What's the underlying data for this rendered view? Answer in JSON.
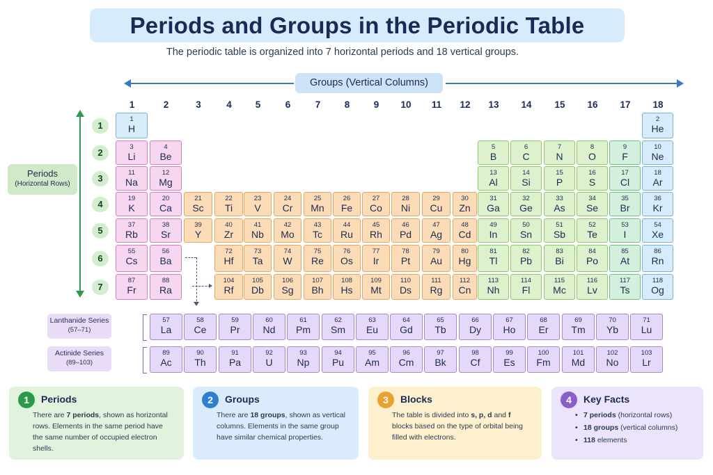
{
  "header": {
    "title": "Periods and Groups in the Periodic Table",
    "subtitle": "The periodic table is organized into 7 horizontal periods and 18 vertical groups."
  },
  "groups_label": "Groups (Vertical Columns)",
  "group_numbers": [
    "1",
    "2",
    "3",
    "4",
    "5",
    "6",
    "7",
    "8",
    "9",
    "10",
    "11",
    "12",
    "13",
    "14",
    "15",
    "16",
    "17",
    "18"
  ],
  "periods_label": {
    "title": "Periods",
    "sub": "(Horizontal Rows)"
  },
  "period_numbers": [
    "1",
    "2",
    "3",
    "4",
    "5",
    "6",
    "7"
  ],
  "elements": [
    {
      "num": "1",
      "sym": "H",
      "col": 1,
      "row": 1,
      "cat": "h"
    },
    {
      "num": "2",
      "sym": "He",
      "col": 18,
      "row": 1,
      "cat": "n"
    },
    {
      "num": "3",
      "sym": "Li",
      "col": 1,
      "row": 2,
      "cat": "s"
    },
    {
      "num": "4",
      "sym": "Be",
      "col": 2,
      "row": 2,
      "cat": "s"
    },
    {
      "num": "5",
      "sym": "B",
      "col": 13,
      "row": 2,
      "cat": "p"
    },
    {
      "num": "6",
      "sym": "C",
      "col": 14,
      "row": 2,
      "cat": "p"
    },
    {
      "num": "7",
      "sym": "N",
      "col": 15,
      "row": 2,
      "cat": "p"
    },
    {
      "num": "8",
      "sym": "O",
      "col": 16,
      "row": 2,
      "cat": "p"
    },
    {
      "num": "9",
      "sym": "F",
      "col": 17,
      "row": 2,
      "cat": "pm"
    },
    {
      "num": "10",
      "sym": "Ne",
      "col": 18,
      "row": 2,
      "cat": "n"
    },
    {
      "num": "11",
      "sym": "Na",
      "col": 1,
      "row": 3,
      "cat": "s"
    },
    {
      "num": "12",
      "sym": "Mg",
      "col": 2,
      "row": 3,
      "cat": "s"
    },
    {
      "num": "13",
      "sym": "Al",
      "col": 13,
      "row": 3,
      "cat": "p"
    },
    {
      "num": "14",
      "sym": "Si",
      "col": 14,
      "row": 3,
      "cat": "p"
    },
    {
      "num": "15",
      "sym": "P",
      "col": 15,
      "row": 3,
      "cat": "p"
    },
    {
      "num": "16",
      "sym": "S",
      "col": 16,
      "row": 3,
      "cat": "p"
    },
    {
      "num": "17",
      "sym": "Cl",
      "col": 17,
      "row": 3,
      "cat": "pm"
    },
    {
      "num": "18",
      "sym": "Ar",
      "col": 18,
      "row": 3,
      "cat": "n"
    },
    {
      "num": "19",
      "sym": "K",
      "col": 1,
      "row": 4,
      "cat": "s"
    },
    {
      "num": "20",
      "sym": "Ca",
      "col": 2,
      "row": 4,
      "cat": "s"
    },
    {
      "num": "21",
      "sym": "Sc",
      "col": 3,
      "row": 4,
      "cat": "d"
    },
    {
      "num": "22",
      "sym": "Ti",
      "col": 4,
      "row": 4,
      "cat": "d"
    },
    {
      "num": "23",
      "sym": "V",
      "col": 5,
      "row": 4,
      "cat": "d"
    },
    {
      "num": "24",
      "sym": "Cr",
      "col": 6,
      "row": 4,
      "cat": "d"
    },
    {
      "num": "25",
      "sym": "Mn",
      "col": 7,
      "row": 4,
      "cat": "d"
    },
    {
      "num": "26",
      "sym": "Fe",
      "col": 8,
      "row": 4,
      "cat": "d"
    },
    {
      "num": "27",
      "sym": "Co",
      "col": 9,
      "row": 4,
      "cat": "d"
    },
    {
      "num": "28",
      "sym": "Ni",
      "col": 10,
      "row": 4,
      "cat": "d"
    },
    {
      "num": "29",
      "sym": "Cu",
      "col": 11,
      "row": 4,
      "cat": "d"
    },
    {
      "num": "30",
      "sym": "Zn",
      "col": 12,
      "row": 4,
      "cat": "d"
    },
    {
      "num": "31",
      "sym": "Ga",
      "col": 13,
      "row": 4,
      "cat": "p"
    },
    {
      "num": "32",
      "sym": "Ge",
      "col": 14,
      "row": 4,
      "cat": "p"
    },
    {
      "num": "33",
      "sym": "As",
      "col": 15,
      "row": 4,
      "cat": "p"
    },
    {
      "num": "34",
      "sym": "Se",
      "col": 16,
      "row": 4,
      "cat": "p"
    },
    {
      "num": "35",
      "sym": "Br",
      "col": 17,
      "row": 4,
      "cat": "pm"
    },
    {
      "num": "36",
      "sym": "Kr",
      "col": 18,
      "row": 4,
      "cat": "n"
    },
    {
      "num": "37",
      "sym": "Rb",
      "col": 1,
      "row": 5,
      "cat": "s"
    },
    {
      "num": "38",
      "sym": "Sr",
      "col": 2,
      "row": 5,
      "cat": "s"
    },
    {
      "num": "39",
      "sym": "Y",
      "col": 3,
      "row": 5,
      "cat": "d"
    },
    {
      "num": "40",
      "sym": "Zr",
      "col": 4,
      "row": 5,
      "cat": "d"
    },
    {
      "num": "41",
      "sym": "Nb",
      "col": 5,
      "row": 5,
      "cat": "d"
    },
    {
      "num": "42",
      "sym": "Mo",
      "col": 6,
      "row": 5,
      "cat": "d"
    },
    {
      "num": "43",
      "sym": "Tc",
      "col": 7,
      "row": 5,
      "cat": "d"
    },
    {
      "num": "44",
      "sym": "Ru",
      "col": 8,
      "row": 5,
      "cat": "d"
    },
    {
      "num": "45",
      "sym": "Rh",
      "col": 9,
      "row": 5,
      "cat": "d"
    },
    {
      "num": "46",
      "sym": "Pd",
      "col": 10,
      "row": 5,
      "cat": "d"
    },
    {
      "num": "47",
      "sym": "Ag",
      "col": 11,
      "row": 5,
      "cat": "d"
    },
    {
      "num": "48",
      "sym": "Cd",
      "col": 12,
      "row": 5,
      "cat": "d"
    },
    {
      "num": "49",
      "sym": "In",
      "col": 13,
      "row": 5,
      "cat": "p"
    },
    {
      "num": "50",
      "sym": "Sn",
      "col": 14,
      "row": 5,
      "cat": "p"
    },
    {
      "num": "51",
      "sym": "Sb",
      "col": 15,
      "row": 5,
      "cat": "p"
    },
    {
      "num": "52",
      "sym": "Te",
      "col": 16,
      "row": 5,
      "cat": "p"
    },
    {
      "num": "53",
      "sym": "I",
      "col": 17,
      "row": 5,
      "cat": "pm"
    },
    {
      "num": "54",
      "sym": "Xe",
      "col": 18,
      "row": 5,
      "cat": "n"
    },
    {
      "num": "55",
      "sym": "Cs",
      "col": 1,
      "row": 6,
      "cat": "s"
    },
    {
      "num": "56",
      "sym": "Ba",
      "col": 2,
      "row": 6,
      "cat": "s"
    },
    {
      "num": "72",
      "sym": "Hf",
      "col": 4,
      "row": 6,
      "cat": "d"
    },
    {
      "num": "73",
      "sym": "Ta",
      "col": 5,
      "row": 6,
      "cat": "d"
    },
    {
      "num": "74",
      "sym": "W",
      "col": 6,
      "row": 6,
      "cat": "d"
    },
    {
      "num": "75",
      "sym": "Re",
      "col": 7,
      "row": 6,
      "cat": "d"
    },
    {
      "num": "76",
      "sym": "Os",
      "col": 8,
      "row": 6,
      "cat": "d"
    },
    {
      "num": "77",
      "sym": "Ir",
      "col": 9,
      "row": 6,
      "cat": "d"
    },
    {
      "num": "78",
      "sym": "Pt",
      "col": 10,
      "row": 6,
      "cat": "d"
    },
    {
      "num": "79",
      "sym": "Au",
      "col": 11,
      "row": 6,
      "cat": "d"
    },
    {
      "num": "80",
      "sym": "Hg",
      "col": 12,
      "row": 6,
      "cat": "d"
    },
    {
      "num": "81",
      "sym": "Tl",
      "col": 13,
      "row": 6,
      "cat": "p"
    },
    {
      "num": "82",
      "sym": "Pb",
      "col": 14,
      "row": 6,
      "cat": "p"
    },
    {
      "num": "83",
      "sym": "Bi",
      "col": 15,
      "row": 6,
      "cat": "p"
    },
    {
      "num": "84",
      "sym": "Po",
      "col": 16,
      "row": 6,
      "cat": "p"
    },
    {
      "num": "85",
      "sym": "At",
      "col": 17,
      "row": 6,
      "cat": "pm"
    },
    {
      "num": "86",
      "sym": "Rn",
      "col": 18,
      "row": 6,
      "cat": "n"
    },
    {
      "num": "87",
      "sym": "Fr",
      "col": 1,
      "row": 7,
      "cat": "s"
    },
    {
      "num": "88",
      "sym": "Ra",
      "col": 2,
      "row": 7,
      "cat": "s"
    },
    {
      "num": "104",
      "sym": "Rf",
      "col": 4,
      "row": 7,
      "cat": "d"
    },
    {
      "num": "105",
      "sym": "Db",
      "col": 5,
      "row": 7,
      "cat": "d"
    },
    {
      "num": "106",
      "sym": "Sg",
      "col": 6,
      "row": 7,
      "cat": "d"
    },
    {
      "num": "107",
      "sym": "Bh",
      "col": 7,
      "row": 7,
      "cat": "d"
    },
    {
      "num": "108",
      "sym": "Hs",
      "col": 8,
      "row": 7,
      "cat": "d"
    },
    {
      "num": "109",
      "sym": "Mt",
      "col": 9,
      "row": 7,
      "cat": "d"
    },
    {
      "num": "110",
      "sym": "Ds",
      "col": 10,
      "row": 7,
      "cat": "d"
    },
    {
      "num": "111",
      "sym": "Rg",
      "col": 11,
      "row": 7,
      "cat": "d"
    },
    {
      "num": "112",
      "sym": "Cn",
      "col": 12,
      "row": 7,
      "cat": "d"
    },
    {
      "num": "113",
      "sym": "Nh",
      "col": 13,
      "row": 7,
      "cat": "p"
    },
    {
      "num": "114",
      "sym": "Fl",
      "col": 14,
      "row": 7,
      "cat": "p"
    },
    {
      "num": "115",
      "sym": "Mc",
      "col": 15,
      "row": 7,
      "cat": "p"
    },
    {
      "num": "116",
      "sym": "Lv",
      "col": 16,
      "row": 7,
      "cat": "p"
    },
    {
      "num": "117",
      "sym": "Ts",
      "col": 17,
      "row": 7,
      "cat": "pm"
    },
    {
      "num": "118",
      "sym": "Og",
      "col": 18,
      "row": 7,
      "cat": "n"
    }
  ],
  "lanthanides": {
    "label": "Lanthanide Series",
    "range": "(57–71)",
    "elements": [
      {
        "num": "57",
        "sym": "La"
      },
      {
        "num": "58",
        "sym": "Ce"
      },
      {
        "num": "59",
        "sym": "Pr"
      },
      {
        "num": "60",
        "sym": "Nd"
      },
      {
        "num": "61",
        "sym": "Pm"
      },
      {
        "num": "62",
        "sym": "Sm"
      },
      {
        "num": "63",
        "sym": "Eu"
      },
      {
        "num": "64",
        "sym": "Gd"
      },
      {
        "num": "65",
        "sym": "Tb"
      },
      {
        "num": "66",
        "sym": "Dy"
      },
      {
        "num": "67",
        "sym": "Ho"
      },
      {
        "num": "68",
        "sym": "Er"
      },
      {
        "num": "69",
        "sym": "Tm"
      },
      {
        "num": "70",
        "sym": "Yb"
      },
      {
        "num": "71",
        "sym": "Lu"
      }
    ]
  },
  "actinides": {
    "label": "Actinide Series",
    "range": "(89–103)",
    "elements": [
      {
        "num": "89",
        "sym": "Ac"
      },
      {
        "num": "90",
        "sym": "Th"
      },
      {
        "num": "91",
        "sym": "Pa"
      },
      {
        "num": "92",
        "sym": "U"
      },
      {
        "num": "93",
        "sym": "Np"
      },
      {
        "num": "94",
        "sym": "Pu"
      },
      {
        "num": "95",
        "sym": "Am"
      },
      {
        "num": "96",
        "sym": "Cm"
      },
      {
        "num": "97",
        "sym": "Bk"
      },
      {
        "num": "98",
        "sym": "Cf"
      },
      {
        "num": "99",
        "sym": "Es"
      },
      {
        "num": "100",
        "sym": "Fm"
      },
      {
        "num": "101",
        "sym": "Md"
      },
      {
        "num": "102",
        "sym": "No"
      },
      {
        "num": "103",
        "sym": "Lr"
      }
    ]
  },
  "cards": [
    {
      "num": "1",
      "title": "Periods",
      "parts": [
        [
          "There are ",
          ""
        ],
        [
          "7 periods",
          "b"
        ],
        [
          ", shown as horizontal rows. Elements in the same period have the same number of occupied electron shells.",
          ""
        ]
      ],
      "color": "#2a9a4a",
      "bg": "#e1f3dc"
    },
    {
      "num": "2",
      "title": "Groups",
      "parts": [
        [
          "There are ",
          ""
        ],
        [
          "18 groups",
          "b"
        ],
        [
          ", shown as vertical columns. Elements in the same group have similar chemical properties.",
          ""
        ]
      ],
      "color": "#2f7fd1",
      "bg": "#daecfb"
    },
    {
      "num": "3",
      "title": "Blocks",
      "parts": [
        [
          "The table is divided into ",
          ""
        ],
        [
          "s, p, d",
          "b"
        ],
        [
          " and ",
          ""
        ],
        [
          "f",
          "b"
        ],
        [
          " blocks based on the type of orbital being filled with electrons.",
          ""
        ]
      ],
      "color": "#e9a12f",
      "bg": "#fdf0cc"
    },
    {
      "num": "4",
      "title": "Key Facts",
      "list": [
        [
          [
            "7 periods",
            "b"
          ],
          [
            " (horizontal rows)",
            ""
          ]
        ],
        [
          [
            "18 groups",
            "b"
          ],
          [
            " (vertical columns)",
            ""
          ]
        ],
        [
          [
            "118",
            "b"
          ],
          [
            " elements",
            ""
          ]
        ]
      ],
      "color": "#8a5fc9",
      "bg": "#ece4fa"
    }
  ]
}
